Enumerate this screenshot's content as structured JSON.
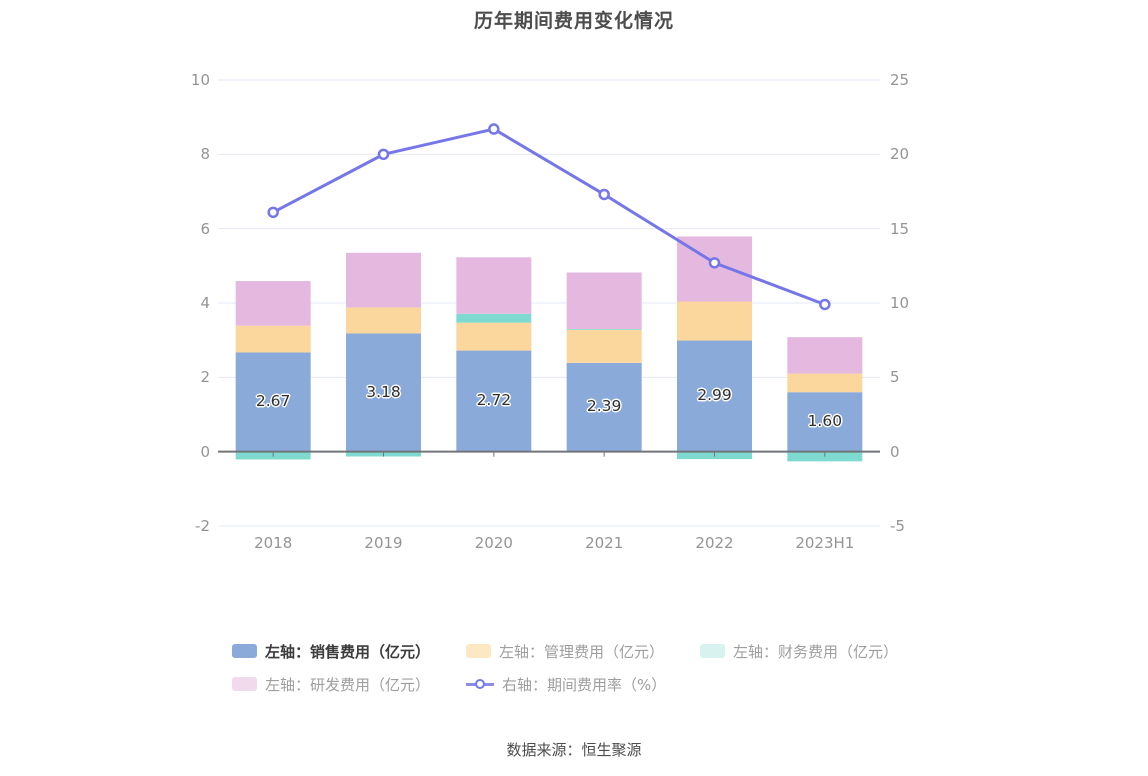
{
  "title": "历年期间费用变化情况",
  "source": "数据来源：恒生聚源",
  "colors": {
    "background": "#ffffff",
    "title_text": "#4d4d4d",
    "axis_text": "#949494",
    "grid_line": "#e3e8f5",
    "zero_line": "#71757a",
    "bar_label": "#2f2f2f",
    "sales_bar": "#8aaad9",
    "management_bar": "#fbd79e",
    "financial_bar": "#7edad0",
    "rd_bar": "#e5b8df",
    "rate_line": "#7577e8",
    "legend_active_text": "#3c3c3c",
    "legend_inactive_text": "#9e9e9e"
  },
  "chart_data": {
    "type": "bar",
    "subtype": "stacked-bar-with-line",
    "title": "历年期间费用变化情况",
    "categories": [
      "2018",
      "2019",
      "2020",
      "2021",
      "2022",
      "2023H1"
    ],
    "series": [
      {
        "name": "左轴：销售费用（亿元）",
        "type": "bar",
        "stack": "total",
        "axis": "left",
        "color": "#8aaad9",
        "values": [
          2.67,
          3.18,
          2.72,
          2.39,
          2.99,
          1.6
        ],
        "labels": [
          "2.67",
          "3.18",
          "2.72",
          "2.39",
          "2.99",
          "1.60"
        ]
      },
      {
        "name": "左轴：管理费用（亿元）",
        "type": "bar",
        "stack": "total",
        "axis": "left",
        "color": "#fbd79e",
        "values": [
          0.72,
          0.7,
          0.75,
          0.89,
          1.05,
          0.5
        ]
      },
      {
        "name": "左轴：财务费用（亿元）",
        "type": "bar",
        "stack": "total",
        "axis": "left",
        "color": "#7edad0",
        "values": [
          -0.21,
          -0.13,
          0.24,
          0.02,
          -0.2,
          -0.26
        ]
      },
      {
        "name": "左轴：研发费用（亿元）",
        "type": "bar",
        "stack": "total",
        "axis": "left",
        "color": "#e5b8df",
        "values": [
          1.2,
          1.47,
          1.52,
          1.52,
          1.75,
          0.98
        ]
      },
      {
        "name": "右轴：期间费用率（%）",
        "type": "line",
        "axis": "right",
        "color": "#7577e8",
        "marker": "empty-circle",
        "values": [
          16.1,
          20.0,
          21.7,
          17.3,
          12.7,
          9.9
        ]
      }
    ],
    "left_axis": {
      "min": -2,
      "max": 10,
      "tick_labels": [
        "10",
        "8",
        "6",
        "4",
        "2",
        "0",
        "-2"
      ],
      "tick_values": [
        10,
        8,
        6,
        4,
        2,
        0,
        -2
      ]
    },
    "right_axis": {
      "min": -5,
      "max": 25,
      "tick_labels": [
        "25",
        "20",
        "15",
        "10",
        "5",
        "0",
        "-5"
      ],
      "tick_values": [
        25,
        20,
        15,
        10,
        5,
        0,
        -5
      ]
    },
    "grid": true,
    "legend_position": "bottom"
  },
  "legend": {
    "rows": [
      [
        {
          "label": "左轴：销售费用（亿元）",
          "swatch": "rect",
          "swatch_color": "#8caad9",
          "state": "active"
        },
        {
          "label": "左轴：管理费用（亿元）",
          "swatch": "rect",
          "swatch_color": "#fce8c2",
          "state": "normal"
        },
        {
          "label": "左轴：财务费用（亿元）",
          "swatch": "rect",
          "swatch_color": "#d7f2ef",
          "state": "normal"
        }
      ],
      [
        {
          "label": "左轴：研发费用（亿元）",
          "swatch": "rect",
          "swatch_color": "#f2daed",
          "state": "normal"
        },
        {
          "label": "右轴：期间费用率（%）",
          "swatch": "line-circle",
          "swatch_color": "#7577e8",
          "state": "normal"
        }
      ]
    ]
  }
}
